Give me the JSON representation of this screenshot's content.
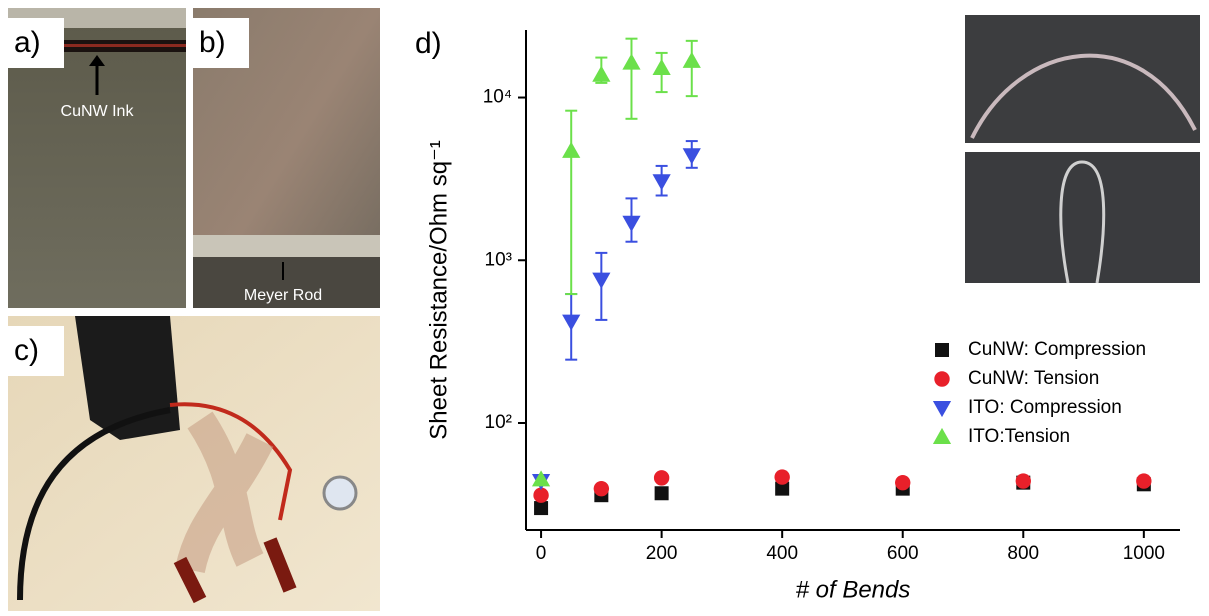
{
  "panels": [
    {
      "label": "a)",
      "caption": "CuNW Ink"
    },
    {
      "label": "b)",
      "caption": "Meyer Rod"
    },
    {
      "label": "c)"
    }
  ],
  "chart_data": {
    "type": "scatter",
    "panel_label": "d)",
    "xlabel": "# of Bends",
    "ylabel": "Sheet Resistance/Ohm sq⁻¹",
    "xlim": [
      -25,
      1060
    ],
    "xticks": [
      0,
      200,
      400,
      600,
      800,
      1000
    ],
    "ylim": [
      22,
      26000
    ],
    "log_y": true,
    "yticks": [
      {
        "value": 100,
        "label": "10²"
      },
      {
        "value": 1000,
        "label": "10³"
      },
      {
        "value": 10000,
        "label": "10⁴"
      }
    ],
    "legend_position": "center right",
    "series": [
      {
        "name": "CuNW: Compression",
        "color": "#111111",
        "marker": "square",
        "x": [
          0,
          100,
          200,
          400,
          600,
          800,
          1000
        ],
        "values": [
          30,
          36,
          37,
          39.5,
          39.5,
          43,
          42
        ]
      },
      {
        "name": "CuNW: Tension",
        "color": "#e8202a",
        "marker": "circle",
        "x": [
          0,
          100,
          200,
          400,
          600,
          800,
          1000
        ],
        "values": [
          36,
          39.5,
          46,
          46.5,
          43,
          44,
          44
        ]
      },
      {
        "name": "ITO: Compression",
        "color": "#3a4fe0",
        "marker": "triangle-down",
        "x": [
          0,
          50,
          100,
          150,
          200,
          250
        ],
        "values": [
          44,
          420,
          760,
          1700,
          3060,
          4420
        ],
        "error_low": [
          null,
          245,
          430,
          1300,
          2500,
          3700
        ],
        "error_high": [
          null,
          620,
          1110,
          2400,
          3800,
          5400
        ]
      },
      {
        "name": "ITO:Tension",
        "color": "#6be04a",
        "marker": "triangle-up",
        "x": [
          0,
          50,
          100,
          150,
          200,
          250
        ],
        "values": [
          45,
          4700,
          13800,
          16400,
          15200,
          16800
        ],
        "error_low": [
          null,
          620,
          12300,
          7400,
          10800,
          10200
        ],
        "error_high": [
          null,
          8300,
          17600,
          23000,
          18800,
          22300
        ]
      }
    ]
  }
}
